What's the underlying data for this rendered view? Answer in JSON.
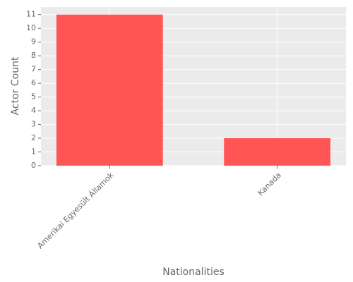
{
  "chart_data": {
    "type": "bar",
    "categories": [
      "Amerikai Egyesült Államok",
      "Kanada"
    ],
    "values": [
      11,
      2
    ],
    "color": "#ff5555",
    "x_label": "Nationalities",
    "y_label": "Actor Count",
    "ylim": [
      0,
      11.55
    ],
    "yticks": [
      0,
      1,
      2,
      3,
      4,
      5,
      6,
      7,
      8,
      9,
      10,
      11
    ],
    "grid": true
  }
}
